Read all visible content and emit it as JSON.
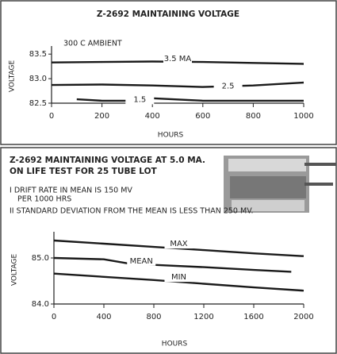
{
  "chart_data": [
    {
      "type": "line",
      "title": "Z-2692 MAINTAINING VOLTAGE",
      "annotations": [
        "300 C AMBIENT"
      ],
      "y_label": "VOLTAGE",
      "x_label": "HOURS",
      "xlim": [
        0,
        1000
      ],
      "xticks": [
        0,
        200,
        400,
        600,
        800,
        1000
      ],
      "ylim": [
        82.5,
        83.6
      ],
      "yticks": [
        82.5,
        {
          "value": 83.0,
          "label": "83.0"
        },
        83.5
      ],
      "series": [
        {
          "name": "3.5 MA",
          "color": "#1a1a1a",
          "x": [
            0,
            200,
            400,
            600,
            800,
            1000
          ],
          "values": [
            83.33,
            83.34,
            83.35,
            83.34,
            83.32,
            83.3
          ]
        },
        {
          "name": "2.5",
          "color": "#1a1a1a",
          "x": [
            0,
            200,
            400,
            600,
            800,
            1000
          ],
          "values": [
            82.87,
            82.88,
            82.86,
            82.83,
            82.86,
            82.92
          ]
        },
        {
          "name": "1.5",
          "color": "#1a1a1a",
          "x": [
            100,
            200,
            300,
            400,
            600,
            800,
            1000
          ],
          "values": [
            82.58,
            82.55,
            82.55,
            82.6,
            82.55,
            82.55,
            82.55
          ]
        }
      ]
    },
    {
      "type": "line",
      "title": "Z-2692 MAINTAINING VOLTAGE AT 5.0 MA.",
      "subtitle": "ON LIFE TEST FOR 25 TUBE LOT",
      "annotations": [
        "I DRIFT RATE IN MEAN IS 150 MV",
        "PER 1000 HRS",
        "II STANDARD DEVIATION FROM THE MEAN IS LESS THAN 250 MV."
      ],
      "y_label": "VOLTAGE",
      "x_label": "HOURS",
      "xlim": [
        0,
        2000
      ],
      "xticks": [
        0,
        400,
        800,
        1200,
        1600,
        2000
      ],
      "ylim": [
        84.0,
        85.5
      ],
      "yticks": [
        {
          "value": 84.0,
          "label": "84.0"
        },
        {
          "value": 85.0,
          "label": "85.0"
        }
      ],
      "series": [
        {
          "name": "MAX",
          "color": "#1a1a1a",
          "x": [
            0,
            400,
            800,
            1200,
            1600,
            2000
          ],
          "values": [
            85.38,
            85.31,
            85.24,
            85.17,
            85.1,
            85.04
          ]
        },
        {
          "name": "MEAN",
          "color": "#1a1a1a",
          "x": [
            0,
            400,
            600,
            800,
            1200,
            1600,
            1900
          ],
          "values": [
            85.0,
            84.97,
            84.88,
            84.85,
            84.8,
            84.74,
            84.7
          ]
        },
        {
          "name": "MIN",
          "color": "#1a1a1a",
          "x": [
            0,
            400,
            800,
            1200,
            1600,
            2000
          ],
          "values": [
            84.66,
            84.59,
            84.52,
            84.44,
            84.36,
            84.29
          ]
        }
      ]
    }
  ]
}
